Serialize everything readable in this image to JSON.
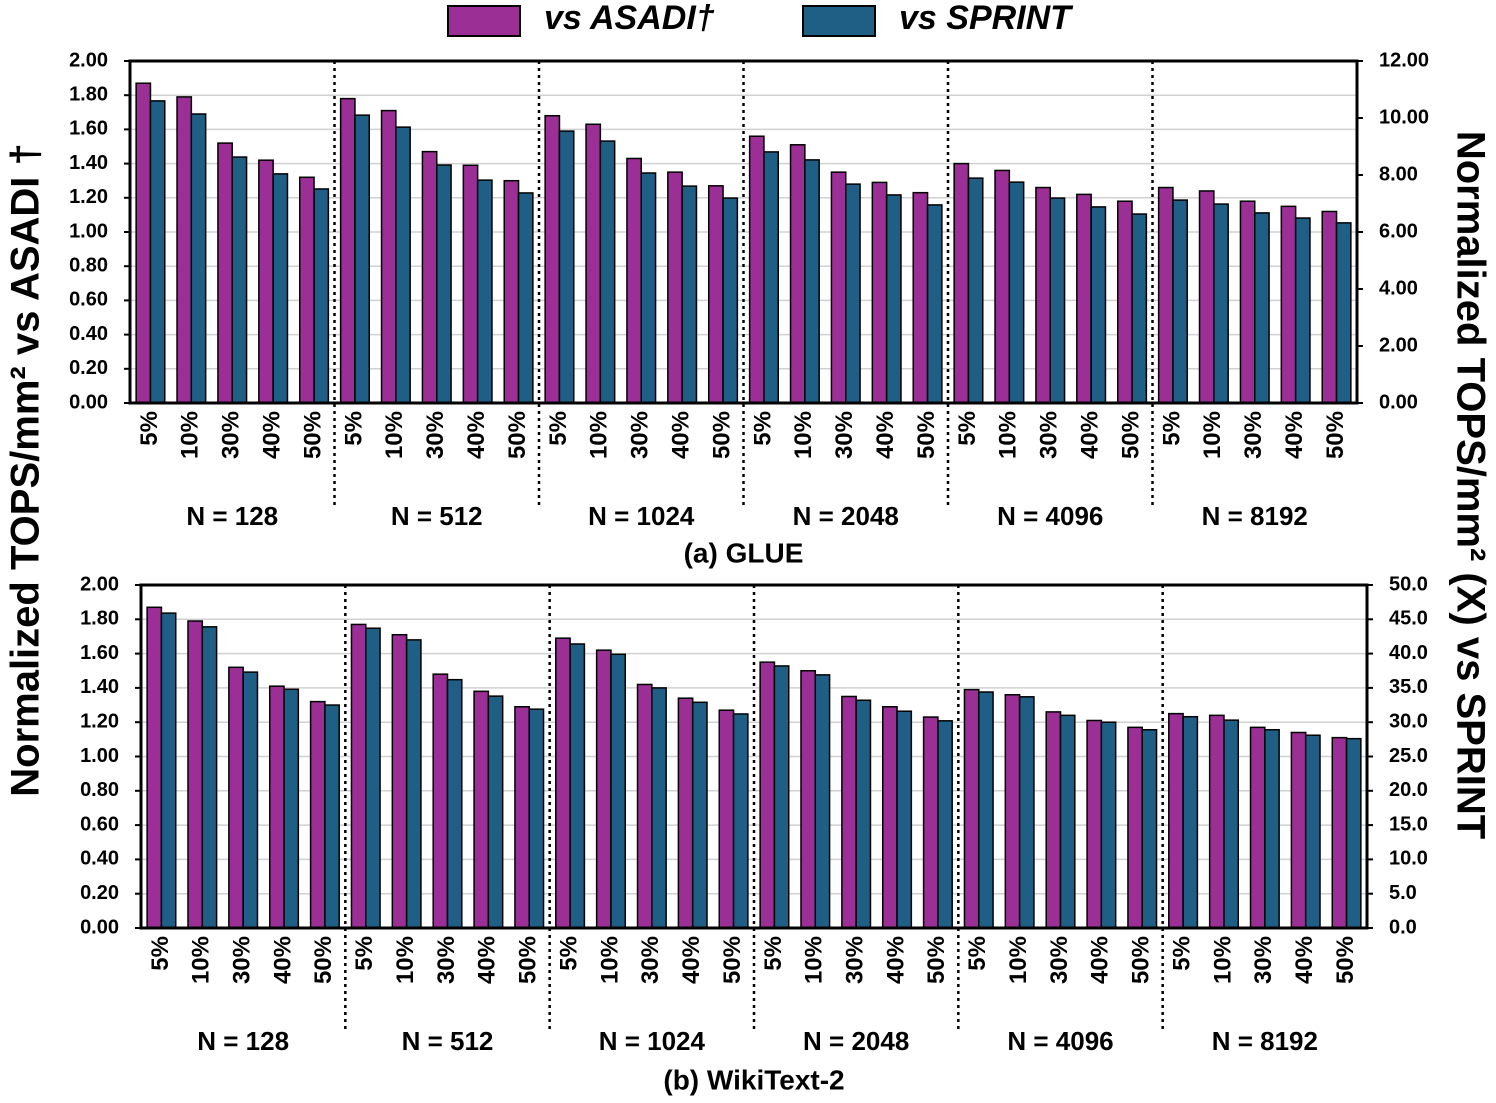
{
  "legend_names_from": "chart_data.0.series",
  "ylabel": "Normalized TOPS/mm² vs ASADI †",
  "y2label": "Normalized TOPS/mm² (X) vs SPRINT",
  "chart_data": [
    {
      "type": "bar",
      "subtitle": "(a) GLUE",
      "categories": [
        "5%",
        "10%",
        "30%",
        "40%",
        "50%",
        "5%",
        "10%",
        "30%",
        "40%",
        "50%",
        "5%",
        "10%",
        "30%",
        "40%",
        "50%",
        "5%",
        "10%",
        "30%",
        "40%",
        "50%",
        "5%",
        "10%",
        "30%",
        "40%",
        "50%",
        "5%",
        "10%",
        "30%",
        "40%",
        "50%"
      ],
      "groups": [
        "N = 128",
        "N = 512",
        "N = 1024",
        "N = 2048",
        "N = 4096",
        "N = 8192"
      ],
      "series": [
        {
          "name": "vs ASADI†",
          "color": "#9b2f96",
          "axis": "y",
          "values": [
            1.87,
            1.79,
            1.52,
            1.42,
            1.32,
            1.78,
            1.71,
            1.47,
            1.39,
            1.3,
            1.68,
            1.63,
            1.43,
            1.35,
            1.27,
            1.56,
            1.51,
            1.35,
            1.29,
            1.23,
            1.4,
            1.36,
            1.26,
            1.22,
            1.18,
            1.26,
            1.24,
            1.18,
            1.15,
            1.12
          ]
        },
        {
          "name": "vs SPRINT",
          "color": "#1f5f85",
          "axis": "y2",
          "values": [
            10.6,
            10.14,
            8.63,
            8.04,
            7.51,
            10.1,
            9.68,
            8.35,
            7.82,
            7.37,
            9.54,
            9.19,
            8.07,
            7.61,
            7.19,
            8.81,
            8.53,
            7.68,
            7.3,
            6.95,
            7.89,
            7.75,
            7.19,
            6.88,
            6.63,
            7.12,
            6.98,
            6.67,
            6.49,
            6.32
          ]
        }
      ],
      "ylim": [
        0,
        2
      ],
      "yticks": [
        {
          "value": 0,
          "label": "0.00"
        },
        {
          "value": 0.2,
          "label": "0.20"
        },
        {
          "value": 0.4,
          "label": "0.40"
        },
        {
          "value": 0.6,
          "label": "0.60"
        },
        {
          "value": 0.8,
          "label": "0.80"
        },
        {
          "value": 1,
          "label": "1.00"
        },
        {
          "value": 1.2,
          "label": "1.20"
        },
        {
          "value": 1.4,
          "label": "1.40"
        },
        {
          "value": 1.6,
          "label": "1.60"
        },
        {
          "value": 1.8,
          "label": "1.80"
        },
        {
          "value": 2,
          "label": "2.00"
        }
      ],
      "y2lim": [
        0,
        12
      ],
      "y2ticks": [
        {
          "value": 0,
          "label": "0.00"
        },
        {
          "value": 2,
          "label": "2.00"
        },
        {
          "value": 4,
          "label": "4.00"
        },
        {
          "value": 6,
          "label": "6.00"
        },
        {
          "value": 8,
          "label": "8.00"
        },
        {
          "value": 10,
          "label": "10.00"
        },
        {
          "value": 12,
          "label": "12.00"
        }
      ],
      "grid": true
    },
    {
      "type": "bar",
      "subtitle": "(b) WikiText-2",
      "categories": [
        "5%",
        "10%",
        "30%",
        "40%",
        "50%",
        "5%",
        "10%",
        "30%",
        "40%",
        "50%",
        "5%",
        "10%",
        "30%",
        "40%",
        "50%",
        "5%",
        "10%",
        "30%",
        "40%",
        "50%",
        "5%",
        "10%",
        "30%",
        "40%",
        "50%",
        "5%",
        "10%",
        "30%",
        "40%",
        "50%"
      ],
      "groups": [
        "N = 128",
        "N = 512",
        "N = 1024",
        "N = 2048",
        "N = 4096",
        "N = 8192"
      ],
      "series": [
        {
          "name": "vs ASADI†",
          "color": "#9b2f96",
          "axis": "y",
          "values": [
            1.87,
            1.79,
            1.52,
            1.41,
            1.32,
            1.77,
            1.71,
            1.48,
            1.38,
            1.29,
            1.69,
            1.62,
            1.42,
            1.34,
            1.27,
            1.55,
            1.5,
            1.35,
            1.29,
            1.23,
            1.39,
            1.36,
            1.26,
            1.21,
            1.17,
            1.25,
            1.24,
            1.17,
            1.14,
            1.11
          ]
        },
        {
          "name": "vs SPRINT",
          "color": "#1f5f85",
          "axis": "y2",
          "values": [
            45.9,
            43.9,
            37.3,
            34.8,
            32.5,
            43.7,
            42.0,
            36.2,
            33.8,
            31.9,
            41.4,
            39.9,
            35.0,
            32.9,
            31.2,
            38.2,
            36.9,
            33.2,
            31.6,
            30.2,
            34.4,
            33.7,
            31.0,
            30.0,
            28.9,
            30.8,
            30.3,
            28.9,
            28.1,
            27.6
          ]
        }
      ],
      "ylim": [
        0,
        2
      ],
      "yticks": [
        {
          "value": 0,
          "label": "0.00"
        },
        {
          "value": 0.2,
          "label": "0.20"
        },
        {
          "value": 0.4,
          "label": "0.40"
        },
        {
          "value": 0.6,
          "label": "0.60"
        },
        {
          "value": 0.8,
          "label": "0.80"
        },
        {
          "value": 1,
          "label": "1.00"
        },
        {
          "value": 1.2,
          "label": "1.20"
        },
        {
          "value": 1.4,
          "label": "1.40"
        },
        {
          "value": 1.6,
          "label": "1.60"
        },
        {
          "value": 1.8,
          "label": "1.80"
        },
        {
          "value": 2,
          "label": "2.00"
        }
      ],
      "y2lim": [
        0,
        50
      ],
      "y2ticks": [
        {
          "value": 0,
          "label": "0.0"
        },
        {
          "value": 5,
          "label": "5.0"
        },
        {
          "value": 10,
          "label": "10.0"
        },
        {
          "value": 15,
          "label": "15.0"
        },
        {
          "value": 20,
          "label": "20.0"
        },
        {
          "value": 25,
          "label": "25.0"
        },
        {
          "value": 30,
          "label": "30.0"
        },
        {
          "value": 35,
          "label": "35.0"
        },
        {
          "value": 40,
          "label": "40.0"
        },
        {
          "value": 45,
          "label": "45.0"
        },
        {
          "value": 50,
          "label": "50.0"
        }
      ],
      "grid": true
    }
  ]
}
